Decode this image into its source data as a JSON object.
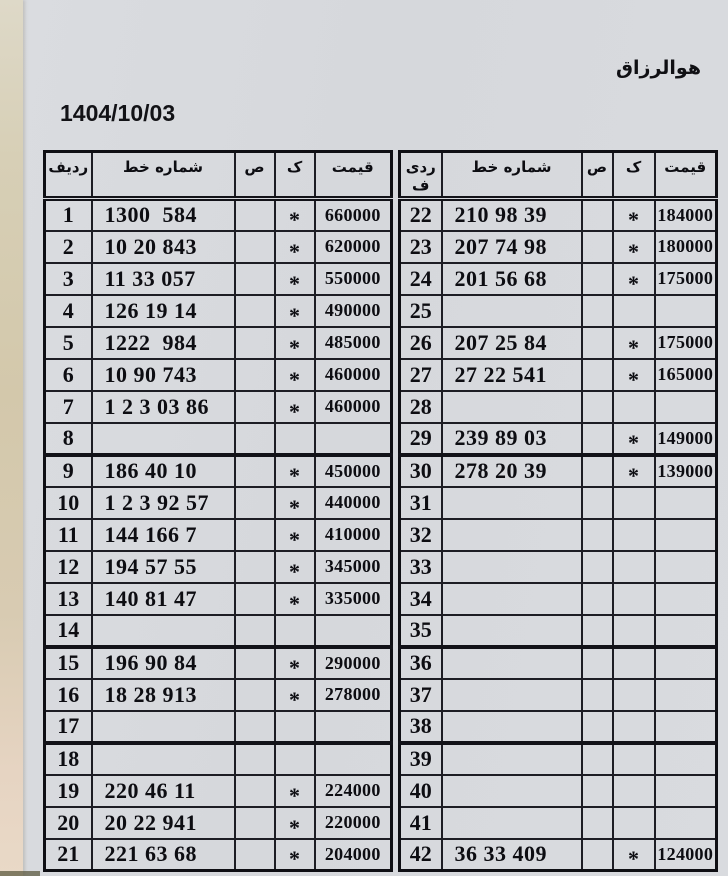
{
  "page": {
    "bismillah": "هوالرزاق",
    "date": "1404/10/03"
  },
  "colors": {
    "paper": "#d7d9dd",
    "scan_strip": "#d3c8ab",
    "grid_border": "#1d1d24",
    "ink": "#0d0d12"
  },
  "table": {
    "columns": {
      "row_left": "ردیف",
      "row_right": "ردی ف",
      "line_number": "شماره خط",
      "sad": "ص",
      "kaf": "ک",
      "price": "قیمت"
    },
    "left": {
      "rows": [
        {
          "no": "1",
          "line": "1300  584",
          "sad": "",
          "kaf": "*",
          "price": "660000"
        },
        {
          "no": "2",
          "line": "10 20 843",
          "sad": "",
          "kaf": "*",
          "price": "620000"
        },
        {
          "no": "3",
          "line": "11 33 057",
          "sad": "",
          "kaf": "*",
          "price": "550000"
        },
        {
          "no": "4",
          "line": "126 19 14",
          "sad": "",
          "kaf": "*",
          "price": "490000"
        },
        {
          "no": "5",
          "line": "1222  984",
          "sad": "",
          "kaf": "*",
          "price": "485000"
        },
        {
          "no": "6",
          "line": "10 90 743",
          "sad": "",
          "kaf": "*",
          "price": "460000"
        },
        {
          "no": "7",
          "line": "1 2 3 03 86",
          "sad": "",
          "kaf": "*",
          "price": "460000"
        },
        {
          "no": "8",
          "line": "",
          "sad": "",
          "kaf": "",
          "price": ""
        },
        {
          "no": "9",
          "line": "186 40 10",
          "sad": "",
          "kaf": "*",
          "price": "450000"
        },
        {
          "no": "10",
          "line": "1 2 3 92 57",
          "sad": "",
          "kaf": "*",
          "price": "440000"
        },
        {
          "no": "11",
          "line": "144 166 7",
          "sad": "",
          "kaf": "*",
          "price": "410000"
        },
        {
          "no": "12",
          "line": "194 57 55",
          "sad": "",
          "kaf": "*",
          "price": "345000"
        },
        {
          "no": "13",
          "line": "140 81 47",
          "sad": "",
          "kaf": "*",
          "price": "335000"
        },
        {
          "no": "14",
          "line": "",
          "sad": "",
          "kaf": "",
          "price": ""
        },
        {
          "no": "15",
          "line": "196 90 84",
          "sad": "",
          "kaf": "*",
          "price": "290000"
        },
        {
          "no": "16",
          "line": "18 28 913",
          "sad": "",
          "kaf": "*",
          "price": "278000"
        },
        {
          "no": "17",
          "line": "",
          "sad": "",
          "kaf": "",
          "price": ""
        },
        {
          "no": "18",
          "line": "",
          "sad": "",
          "kaf": "",
          "price": ""
        },
        {
          "no": "19",
          "line": "220 46 11",
          "sad": "",
          "kaf": "*",
          "price": "224000"
        },
        {
          "no": "20",
          "line": "20 22 941",
          "sad": "",
          "kaf": "*",
          "price": "220000"
        },
        {
          "no": "21",
          "line": "221 63 68",
          "sad": "",
          "kaf": "*",
          "price": "204000"
        }
      ]
    },
    "right": {
      "rows": [
        {
          "no": "22",
          "line": "210 98 39",
          "sad": "",
          "kaf": "*",
          "price": "184000"
        },
        {
          "no": "23",
          "line": "207 74 98",
          "sad": "",
          "kaf": "*",
          "price": "180000"
        },
        {
          "no": "24",
          "line": "201 56 68",
          "sad": "",
          "kaf": "*",
          "price": "175000"
        },
        {
          "no": "25",
          "line": "",
          "sad": "",
          "kaf": "",
          "price": ""
        },
        {
          "no": "26",
          "line": "207 25 84",
          "sad": "",
          "kaf": "*",
          "price": "175000"
        },
        {
          "no": "27",
          "line": "27 22 541",
          "sad": "",
          "kaf": "*",
          "price": "165000"
        },
        {
          "no": "28",
          "line": "",
          "sad": "",
          "kaf": "",
          "price": ""
        },
        {
          "no": "29",
          "line": "239 89 03",
          "sad": "",
          "kaf": "*",
          "price": "149000"
        },
        {
          "no": "30",
          "line": "278 20 39",
          "sad": "",
          "kaf": "*",
          "price": "139000"
        },
        {
          "no": "31",
          "line": "",
          "sad": "",
          "kaf": "",
          "price": ""
        },
        {
          "no": "32",
          "line": "",
          "sad": "",
          "kaf": "",
          "price": ""
        },
        {
          "no": "33",
          "line": "",
          "sad": "",
          "kaf": "",
          "price": ""
        },
        {
          "no": "34",
          "line": "",
          "sad": "",
          "kaf": "",
          "price": ""
        },
        {
          "no": "35",
          "line": "",
          "sad": "",
          "kaf": "",
          "price": ""
        },
        {
          "no": "36",
          "line": "",
          "sad": "",
          "kaf": "",
          "price": ""
        },
        {
          "no": "37",
          "line": "",
          "sad": "",
          "kaf": "",
          "price": ""
        },
        {
          "no": "38",
          "line": "",
          "sad": "",
          "kaf": "",
          "price": ""
        },
        {
          "no": "39",
          "line": "",
          "sad": "",
          "kaf": "",
          "price": ""
        },
        {
          "no": "40",
          "line": "",
          "sad": "",
          "kaf": "",
          "price": ""
        },
        {
          "no": "41",
          "line": "",
          "sad": "",
          "kaf": "",
          "price": ""
        },
        {
          "no": "42",
          "line": "36 33 409",
          "sad": "",
          "kaf": "*",
          "price": "124000"
        }
      ]
    }
  }
}
